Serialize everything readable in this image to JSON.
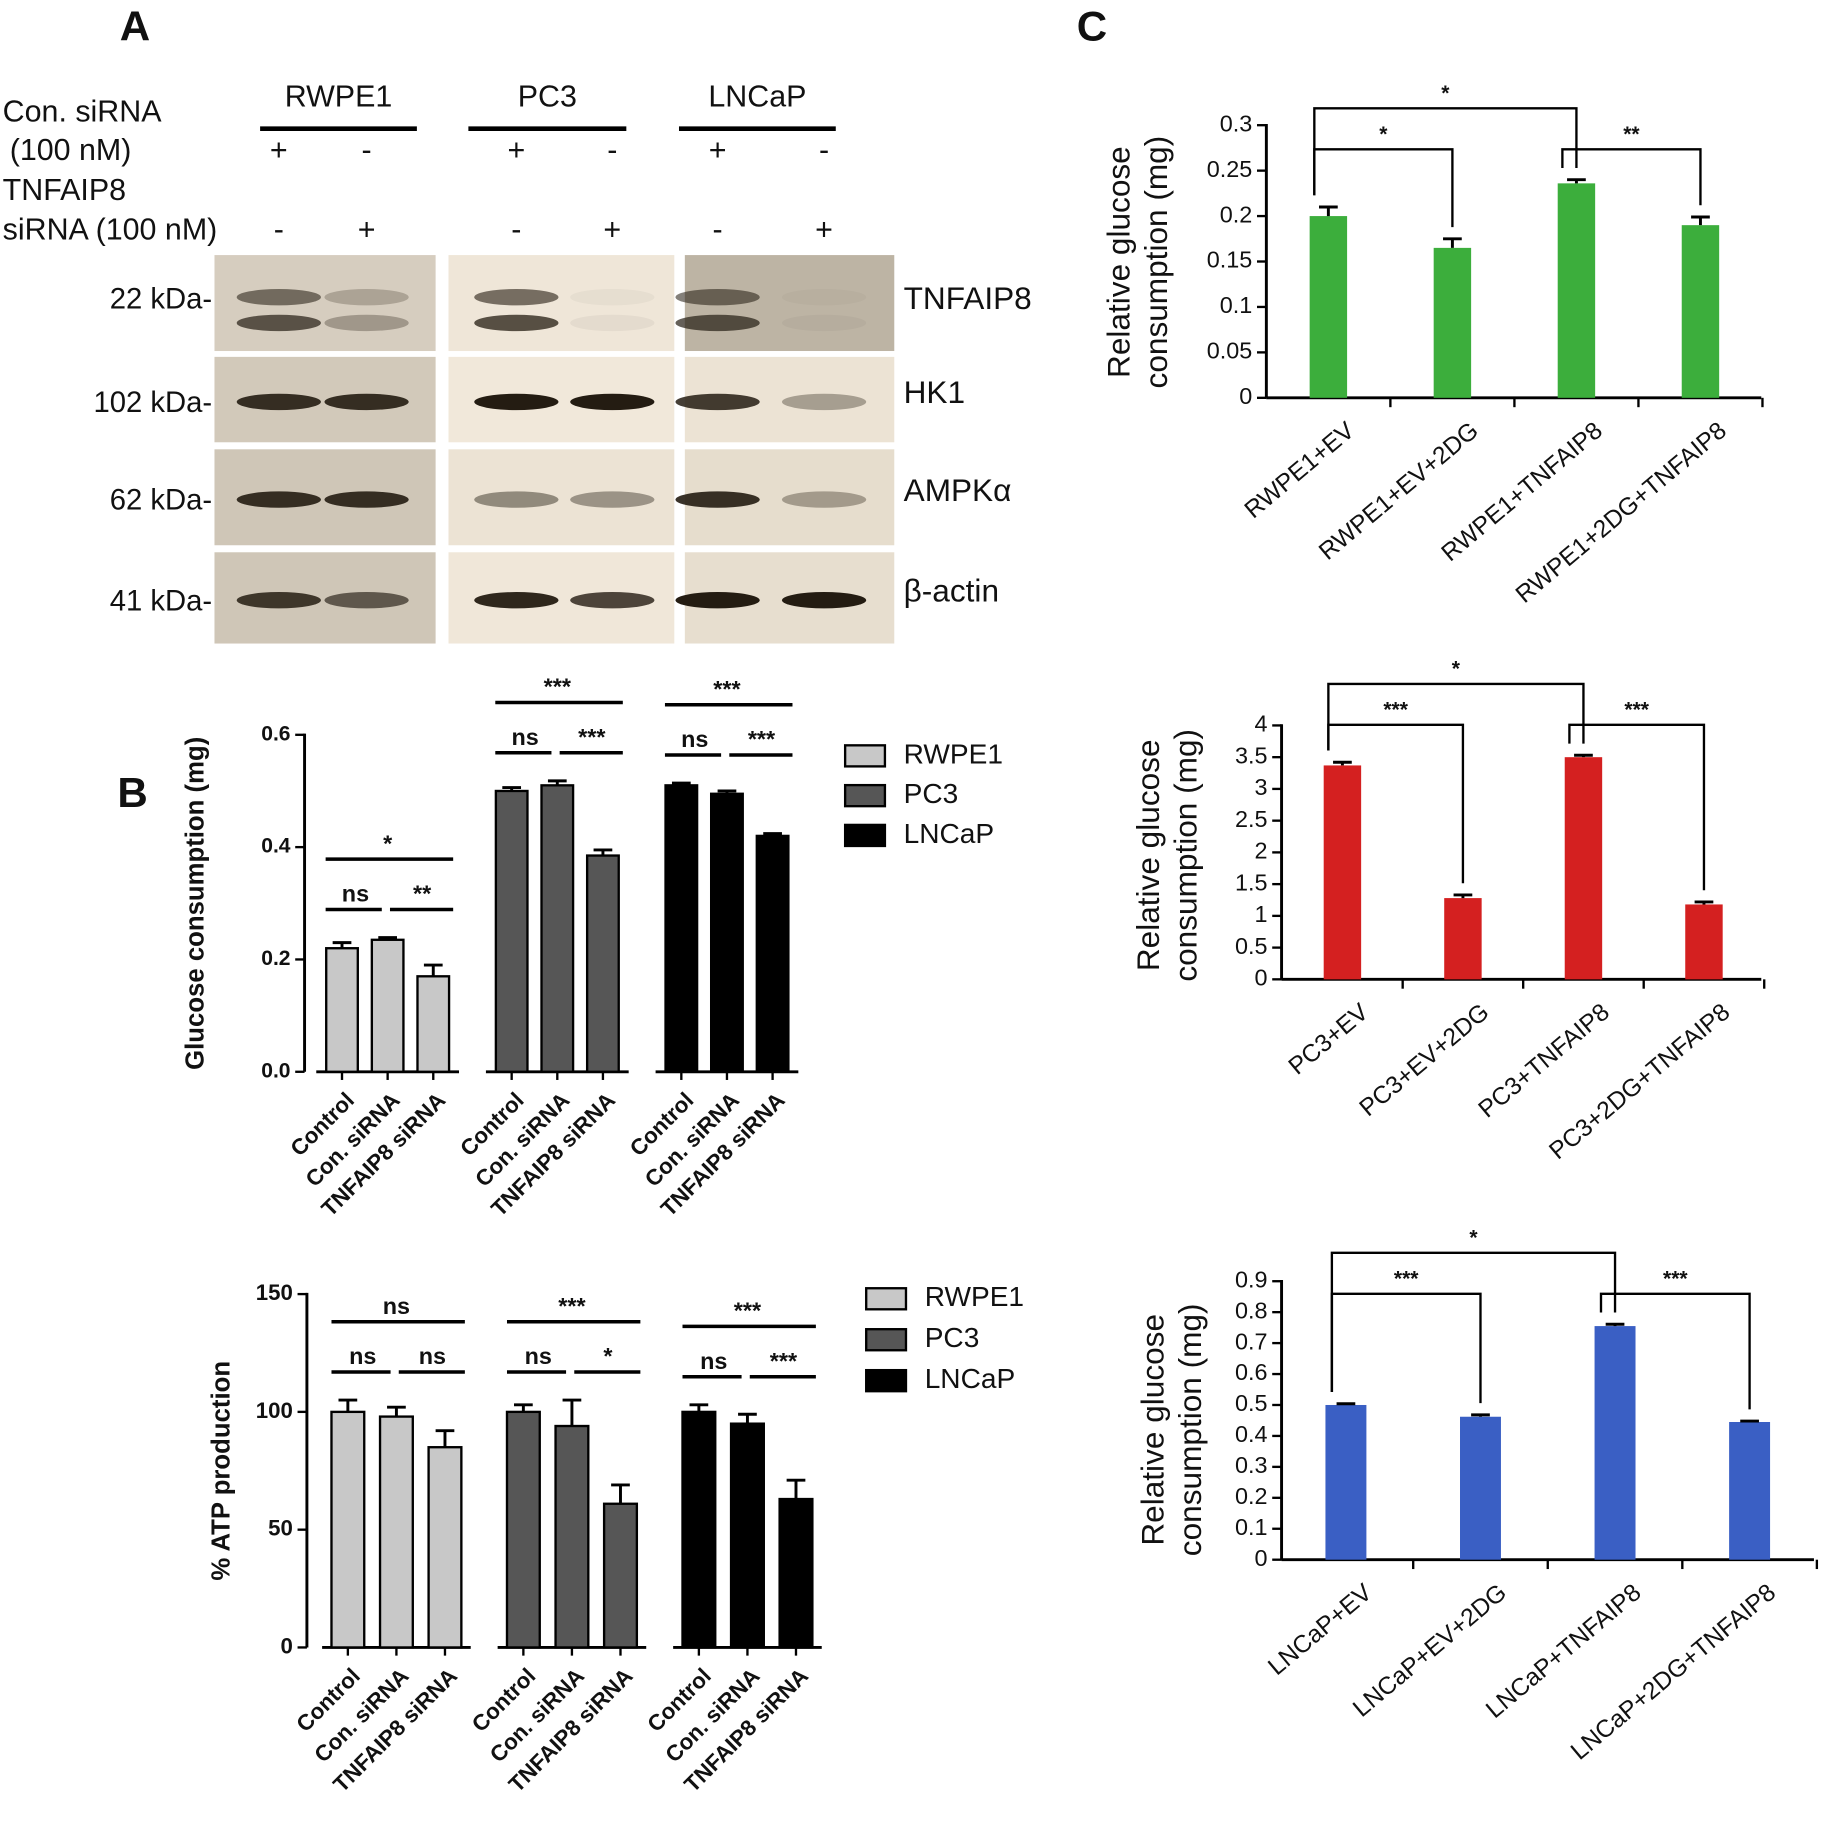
{
  "panels": [
    "A",
    "B",
    "C"
  ],
  "header": [
    "Con. siRNA",
    "(100 nM)",
    "TNFAIP8",
    "siRNA (100 nM)"
  ],
  "blot": {
    "cell_lines": [
      "RWPE1",
      "PC3",
      "LNCaP"
    ],
    "control_signs": [
      "+",
      "-",
      "+",
      "-",
      "+",
      "-"
    ],
    "tnfaip8_signs": [
      "-",
      "+",
      "-",
      "+",
      "-",
      "+"
    ],
    "markers": [
      "22 kDa-",
      "102 kDa-",
      "62 kDa-",
      "41 kDa-"
    ],
    "proteins": [
      "TNFAIP8",
      "HK1",
      "AMPKα",
      "β-actin"
    ]
  },
  "chart_data": [
    {
      "type": "bar",
      "ylabel": "Glucose consumption (mg)",
      "categories": [
        "Control",
        "Con. siRNA",
        "TNFAIP8 siRNA"
      ],
      "series": [
        {
          "name": "RWPE1",
          "color": "#c8c8c8",
          "values": [
            0.22,
            0.235,
            0.17
          ],
          "errors": [
            0.01,
            0.004,
            0.02
          ],
          "sig": [
            "*",
            "ns",
            "**"
          ]
        },
        {
          "name": "PC3",
          "color": "#565656",
          "values": [
            0.5,
            0.51,
            0.385
          ],
          "errors": [
            0.006,
            0.008,
            0.01
          ],
          "sig": [
            "***",
            "ns",
            "***"
          ]
        },
        {
          "name": "LNCaP",
          "color": "#000000",
          "values": [
            0.51,
            0.495,
            0.42
          ],
          "errors": [
            0.004,
            0.005,
            0.004
          ],
          "sig": [
            "***",
            "ns",
            "***"
          ]
        }
      ],
      "ylim": [
        0,
        0.6
      ],
      "yticks": [
        {
          "value": 0,
          "label": "0.0"
        },
        0.2,
        0.4,
        0.6
      ]
    },
    {
      "type": "bar",
      "ylabel": "% ATP production",
      "categories": [
        "Control",
        "Con. siRNA",
        "TNFAIP8 siRNA"
      ],
      "series": [
        {
          "name": "RWPE1",
          "color": "#c8c8c8",
          "values": [
            100,
            98,
            85
          ],
          "errors": [
            5,
            4,
            7
          ],
          "sig": [
            "ns",
            "ns",
            "ns"
          ]
        },
        {
          "name": "PC3",
          "color": "#565656",
          "values": [
            100,
            94,
            61
          ],
          "errors": [
            3,
            11,
            8
          ],
          "sig": [
            "***",
            "ns",
            "*"
          ]
        },
        {
          "name": "LNCaP",
          "color": "#000000",
          "values": [
            100,
            95,
            63
          ],
          "errors": [
            3,
            4,
            8
          ],
          "sig": [
            "***",
            "ns",
            "***"
          ]
        }
      ],
      "ylim": [
        0,
        150
      ],
      "yticks": [
        0,
        50,
        100,
        150
      ]
    },
    {
      "type": "bar",
      "ylabel": [
        "Relative glucose",
        "consumption (mg)"
      ],
      "categories": [
        "RWPE1+EV",
        "RWPE1+EV+2DG",
        "RWPE1+TNFAIP8",
        "RWPE1+2DG+TNFAIP8"
      ],
      "values": [
        0.2,
        0.165,
        0.236,
        0.19
      ],
      "errors": [
        0.01,
        0.01,
        0.004,
        0.009
      ],
      "sig": [
        "*",
        "*",
        "**"
      ],
      "color": "#3cae3c",
      "ylim": [
        0,
        0.3
      ],
      "yticks": [
        0,
        0.05,
        0.1,
        0.15,
        0.2,
        0.25,
        0.3
      ]
    },
    {
      "type": "bar",
      "ylabel": [
        "Relative glucose",
        "consumption (mg)"
      ],
      "categories": [
        "PC3+EV",
        "PC3+EV+2DG",
        "PC3+TNFAIP8",
        "PC3+2DG+TNFAIP8"
      ],
      "values": [
        3.37,
        1.28,
        3.5,
        1.18
      ],
      "errors": [
        0.05,
        0.05,
        0.03,
        0.04
      ],
      "sig": [
        "*",
        "***",
        "***"
      ],
      "color": "#d42020",
      "ylim": [
        0,
        4
      ],
      "yticks": [
        0,
        0.5,
        1,
        1.5,
        2,
        2.5,
        3,
        3.5,
        4
      ]
    },
    {
      "type": "bar",
      "ylabel": [
        "Relative glucose",
        "consumption (mg)"
      ],
      "categories": [
        "LNCaP+EV",
        "LNCaP+EV+2DG",
        "LNCaP+TNFAIP8",
        "LNCaP+2DG+TNFAIP8"
      ],
      "values": [
        0.5,
        0.462,
        0.755,
        0.445
      ],
      "errors": [
        0.004,
        0.006,
        0.006,
        0.003
      ],
      "sig": [
        "*",
        "***",
        "***"
      ],
      "color": "#3a5fc4",
      "ylim": [
        0,
        0.9
      ],
      "yticks": [
        0,
        0.1,
        0.2,
        0.3,
        0.4,
        0.5,
        0.6,
        0.7,
        0.8,
        0.9
      ]
    }
  ]
}
